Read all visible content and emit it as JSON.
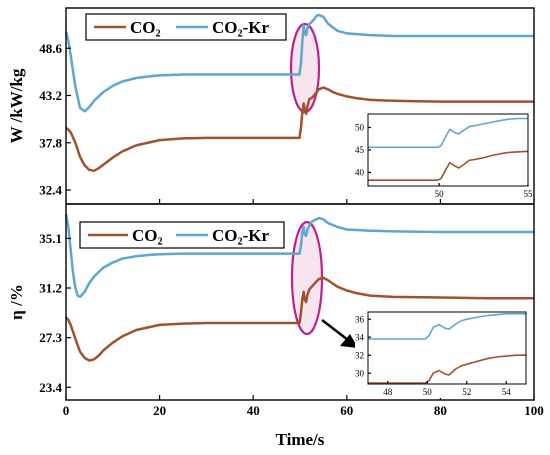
{
  "colors": {
    "co2": "#a0522d",
    "co2kr": "#5fa6d0",
    "ellipse": "#c0208e",
    "highlight": "#f7e6f0"
  },
  "chart_data": [
    {
      "type": "line",
      "ylabel": "W /kW/kg",
      "ylim": [
        30.8,
        53.2
      ],
      "xlim": [
        0,
        100
      ],
      "yticks": [
        "32.4",
        "37.8",
        "43.2",
        "48.6"
      ],
      "legend_placement": "top-left",
      "series": [
        {
          "name": "CO₂",
          "color": "#a0522d",
          "x": [
            0,
            0.5,
            1,
            2,
            3,
            4,
            5,
            6,
            7,
            8,
            10,
            12,
            15,
            20,
            25,
            30,
            40,
            49.9,
            50.2,
            50.5,
            50.8,
            51,
            51.3,
            51.6,
            52,
            52.5,
            53,
            54,
            55,
            56,
            57,
            58,
            60,
            62,
            65,
            70,
            75,
            80,
            90,
            100
          ],
          "y": [
            39.5,
            39.3,
            39.0,
            37.8,
            36.2,
            35.2,
            34.7,
            34.6,
            34.9,
            35.3,
            36.1,
            36.8,
            37.5,
            38.1,
            38.3,
            38.35,
            38.35,
            38.35,
            39.5,
            41.2,
            42.3,
            41.6,
            41.1,
            42.0,
            42.8,
            42.9,
            43.2,
            43.9,
            44.1,
            43.9,
            43.6,
            43.4,
            43.1,
            42.9,
            42.7,
            42.6,
            42.55,
            42.5,
            42.5,
            42.5
          ]
        },
        {
          "name": "CO₂-Kr",
          "color": "#5fa6d0",
          "x": [
            0,
            0.5,
            1,
            1.5,
            2,
            3,
            4,
            5,
            6,
            8,
            10,
            12,
            15,
            18,
            20,
            25,
            30,
            40,
            49.9,
            50.2,
            50.5,
            50.8,
            51,
            51.3,
            51.6,
            52,
            52.5,
            53,
            53.5,
            54,
            55,
            56,
            58,
            60,
            65,
            70,
            80,
            90,
            100
          ],
          "y": [
            50.5,
            49.5,
            47.8,
            46.0,
            44.2,
            41.8,
            41.4,
            41.9,
            42.6,
            43.6,
            44.3,
            44.8,
            45.2,
            45.4,
            45.5,
            45.6,
            45.6,
            45.6,
            45.6,
            46.8,
            49.3,
            51.2,
            50.4,
            50.1,
            50.9,
            51.4,
            51.6,
            51.9,
            52.3,
            52.4,
            52.2,
            51.4,
            50.6,
            50.3,
            50.1,
            50.0,
            50.0,
            50.0,
            50.0
          ]
        }
      ],
      "inset": {
        "xlim": [
          46,
          55
        ],
        "ylim": [
          37,
          53
        ],
        "xticks": [
          "50",
          "55"
        ],
        "yticks": [
          "40",
          "45",
          "50"
        ],
        "series": [
          {
            "name": "CO₂",
            "color": "#a0522d",
            "x": [
              46,
              49.9,
              50.1,
              50.4,
              50.6,
              50.9,
              51.1,
              51.4,
              51.7,
              52,
              52.5,
              53,
              53.5,
              54,
              54.5,
              55
            ],
            "y": [
              38.3,
              38.3,
              38.6,
              40.8,
              42.2,
              41.4,
              41.0,
              41.8,
              42.7,
              42.9,
              43.3,
              43.8,
              44.2,
              44.5,
              44.6,
              44.7
            ]
          },
          {
            "name": "CO₂-Kr",
            "color": "#5fa6d0",
            "x": [
              46,
              49.9,
              50.1,
              50.4,
              50.6,
              50.9,
              51.1,
              51.4,
              51.7,
              52,
              52.5,
              53,
              53.5,
              54,
              54.5,
              55
            ],
            "y": [
              45.6,
              45.6,
              45.9,
              48.2,
              49.6,
              48.8,
              48.6,
              49.4,
              50.2,
              50.4,
              50.8,
              51.2,
              51.6,
              51.9,
              52.0,
              52.0
            ]
          }
        ]
      }
    },
    {
      "type": "line",
      "ylabel": "η /%",
      "ylim": [
        22.4,
        37.8
      ],
      "xlim": [
        0,
        100
      ],
      "yticks": [
        "23.4",
        "27.3",
        "31.2",
        "35.1"
      ],
      "xticks": [
        "0",
        "20",
        "40",
        "60",
        "80",
        "100"
      ],
      "xlabel": "Time/s",
      "legend_placement": "top-left",
      "series": [
        {
          "name": "CO₂",
          "color": "#a0522d",
          "x": [
            0,
            0.5,
            1,
            2,
            3,
            4,
            5,
            6,
            7,
            8,
            10,
            12,
            15,
            20,
            25,
            30,
            40,
            49.9,
            50.2,
            50.5,
            50.8,
            51,
            51.3,
            51.6,
            52,
            52.5,
            53,
            54,
            55,
            56,
            58,
            60,
            62,
            65,
            70,
            80,
            90,
            100
          ],
          "y": [
            28.9,
            28.7,
            28.3,
            27.2,
            26.2,
            25.7,
            25.5,
            25.6,
            25.9,
            26.3,
            26.9,
            27.4,
            27.9,
            28.3,
            28.4,
            28.45,
            28.45,
            28.45,
            29.2,
            30.3,
            30.9,
            30.3,
            30.1,
            30.7,
            31.1,
            31.3,
            31.5,
            31.9,
            32.0,
            31.8,
            31.3,
            31.0,
            30.8,
            30.6,
            30.5,
            30.45,
            30.4,
            30.4
          ]
        },
        {
          "name": "CO₂-Kr",
          "color": "#5fa6d0",
          "x": [
            0,
            0.5,
            1,
            1.5,
            2,
            2.5,
            3,
            4,
            5,
            6,
            8,
            10,
            12,
            15,
            18,
            20,
            25,
            30,
            40,
            49.9,
            50.2,
            50.5,
            50.8,
            51,
            51.3,
            51.6,
            52,
            52.5,
            53,
            53.5,
            54,
            55,
            56,
            58,
            60,
            65,
            70,
            80,
            90,
            100
          ],
          "y": [
            37.0,
            36.0,
            34.2,
            32.4,
            31.2,
            30.6,
            30.5,
            30.9,
            31.6,
            32.1,
            32.8,
            33.2,
            33.5,
            33.7,
            33.8,
            33.85,
            33.9,
            33.9,
            33.9,
            33.9,
            34.5,
            35.6,
            36.0,
            35.4,
            35.3,
            35.8,
            36.1,
            36.4,
            36.5,
            36.6,
            36.7,
            36.6,
            36.3,
            36.0,
            35.8,
            35.7,
            35.65,
            35.6,
            35.6,
            35.6
          ]
        }
      ],
      "inset": {
        "xlim": [
          47,
          55
        ],
        "ylim": [
          28.8,
          36.8
        ],
        "xticks": [
          "48",
          "50",
          "52",
          "54"
        ],
        "yticks": [
          "30",
          "32",
          "34",
          "36"
        ],
        "series": [
          {
            "name": "CO₂",
            "color": "#a0522d",
            "x": [
              47,
              49.9,
              50.1,
              50.3,
              50.6,
              50.9,
              51.1,
              51.4,
              51.7,
              52,
              52.5,
              53,
              53.5,
              54,
              54.5,
              55
            ],
            "y": [
              28.9,
              28.9,
              29.2,
              30.0,
              30.3,
              29.9,
              29.8,
              30.4,
              30.8,
              31.0,
              31.3,
              31.6,
              31.8,
              31.9,
              32.0,
              32.0
            ]
          },
          {
            "name": "CO₂-Kr",
            "color": "#5fa6d0",
            "x": [
              47,
              49.9,
              50.1,
              50.3,
              50.6,
              50.9,
              51.1,
              51.4,
              51.7,
              52,
              52.5,
              53,
              53.5,
              54,
              54.5,
              55
            ],
            "y": [
              33.8,
              33.8,
              34.2,
              35.1,
              35.4,
              35.0,
              34.9,
              35.4,
              35.8,
              36.0,
              36.2,
              36.4,
              36.5,
              36.6,
              36.6,
              36.6
            ]
          }
        ]
      }
    }
  ]
}
